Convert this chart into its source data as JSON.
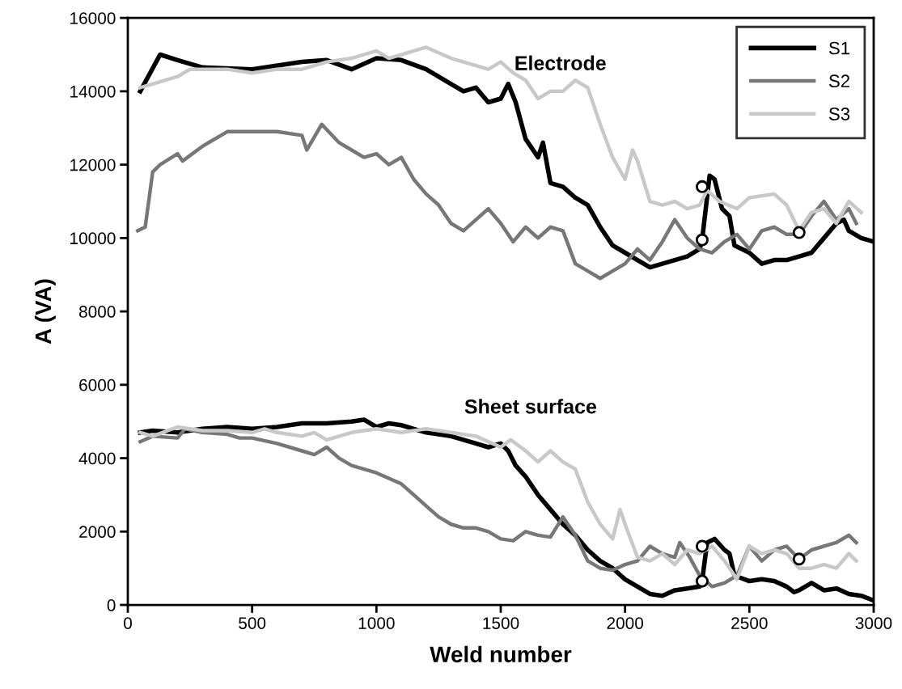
{
  "chart_data": {
    "type": "line",
    "xlabel": "Weld number",
    "ylabel": "A (VA)",
    "xlim": [
      0,
      3000
    ],
    "ylim": [
      0,
      16000
    ],
    "xticks": [
      0,
      500,
      1000,
      1500,
      2000,
      2500,
      3000
    ],
    "yticks": [
      0,
      2000,
      4000,
      6000,
      8000,
      10000,
      12000,
      14000,
      16000
    ],
    "grid": false,
    "legend": "top right",
    "marker": "none",
    "line_style": "solid",
    "annotations": [
      "Electrode",
      "Sheet surface"
    ],
    "series": [
      {
        "name": "S1",
        "color": "#000000",
        "x": [
          50,
          130,
          200,
          300,
          500,
          700,
          800,
          900,
          1000,
          1100,
          1200,
          1300,
          1350,
          1400,
          1450,
          1500,
          1530,
          1560,
          1600,
          1650,
          1670,
          1700,
          1750,
          1800,
          1850,
          1900,
          1950,
          2000,
          2050,
          2100,
          2200,
          2250,
          2300,
          2310,
          2340,
          2360,
          2390,
          2420,
          2440,
          2500,
          2550,
          2600,
          2650,
          2700,
          2750,
          2800,
          2850,
          2880,
          2900,
          2950,
          3000
        ],
        "values": [
          14000,
          15000,
          14850,
          14650,
          14600,
          14800,
          14850,
          14600,
          14900,
          14850,
          14600,
          14200,
          14000,
          14100,
          13700,
          13800,
          14200,
          13700,
          12700,
          12200,
          12600,
          11500,
          11400,
          11100,
          10900,
          10300,
          9800,
          9600,
          9400,
          9200,
          9400,
          9500,
          9700,
          9950,
          11700,
          11600,
          10800,
          10600,
          9800,
          9600,
          9300,
          9400,
          9400,
          9500,
          9600,
          10000,
          10400,
          10500,
          10200,
          10000,
          9900
        ]
      },
      {
        "name": "S2",
        "color": "#777777",
        "x": [
          40,
          70,
          100,
          130,
          200,
          220,
          300,
          400,
          500,
          600,
          700,
          720,
          780,
          850,
          900,
          950,
          1000,
          1050,
          1100,
          1150,
          1200,
          1250,
          1300,
          1350,
          1450,
          1500,
          1550,
          1600,
          1650,
          1700,
          1750,
          1800,
          1850,
          1900,
          1950,
          2000,
          2050,
          2100,
          2150,
          2200,
          2250,
          2300,
          2350,
          2400,
          2450,
          2500,
          2550,
          2600,
          2650,
          2700,
          2750,
          2800,
          2850,
          2900,
          2930
        ],
        "values": [
          10200,
          10300,
          11800,
          12000,
          12300,
          12100,
          12500,
          12900,
          12900,
          12900,
          12800,
          12400,
          13100,
          12600,
          12400,
          12200,
          12300,
          12000,
          12200,
          11600,
          11200,
          10900,
          10400,
          10200,
          10800,
          10400,
          9900,
          10300,
          10000,
          10300,
          10200,
          9300,
          9100,
          8900,
          9100,
          9300,
          9700,
          9400,
          9900,
          10500,
          10000,
          9700,
          9600,
          9900,
          10100,
          9700,
          10200,
          10300,
          10100,
          10100,
          10600,
          11000,
          10500,
          10800,
          10400
        ]
      },
      {
        "name": "S3",
        "color": "#c8c8c8",
        "x": [
          50,
          100,
          200,
          250,
          300,
          400,
          500,
          600,
          700,
          800,
          900,
          1000,
          1050,
          1100,
          1200,
          1300,
          1400,
          1450,
          1500,
          1550,
          1600,
          1650,
          1700,
          1750,
          1800,
          1850,
          1900,
          1950,
          2000,
          2030,
          2050,
          2100,
          2150,
          2200,
          2250,
          2300,
          2330,
          2380,
          2450,
          2500,
          2600,
          2650,
          2700,
          2750,
          2800,
          2850,
          2900,
          2950
        ],
        "values": [
          14100,
          14200,
          14400,
          14600,
          14600,
          14600,
          14500,
          14600,
          14600,
          14800,
          14900,
          15100,
          14900,
          15000,
          15200,
          14900,
          14700,
          14600,
          14800,
          14500,
          14300,
          13800,
          14000,
          14000,
          14300,
          14100,
          13100,
          12200,
          11600,
          12400,
          12100,
          11000,
          10900,
          11000,
          10800,
          10900,
          11300,
          11000,
          10800,
          11100,
          11200,
          10900,
          10200,
          10700,
          10800,
          10400,
          11000,
          10700
        ]
      },
      {
        "color": "#000000",
        "x": [
          50,
          100,
          200,
          300,
          400,
          500,
          600,
          700,
          800,
          900,
          950,
          1000,
          1050,
          1100,
          1200,
          1300,
          1400,
          1450,
          1500,
          1530,
          1560,
          1600,
          1650,
          1700,
          1750,
          1800,
          1850,
          1900,
          1950,
          2000,
          2050,
          2100,
          2150,
          2200,
          2250,
          2300,
          2310,
          2330,
          2360,
          2400,
          2420,
          2440,
          2500,
          2550,
          2600,
          2650,
          2680,
          2700,
          2750,
          2800,
          2850,
          2900,
          2950,
          3000
        ],
        "values": [
          4700,
          4750,
          4700,
          4800,
          4850,
          4800,
          4850,
          4950,
          4950,
          5000,
          5050,
          4850,
          4950,
          4900,
          4700,
          4600,
          4400,
          4300,
          4400,
          4200,
          3800,
          3500,
          3000,
          2600,
          2200,
          1900,
          1500,
          1200,
          1000,
          700,
          500,
          300,
          250,
          400,
          450,
          500,
          650,
          1700,
          1800,
          1500,
          1400,
          800,
          650,
          700,
          650,
          500,
          350,
          400,
          600,
          400,
          450,
          300,
          250,
          120
        ]
      },
      {
        "color": "#777777",
        "x": [
          50,
          100,
          200,
          230,
          300,
          400,
          450,
          500,
          600,
          700,
          750,
          800,
          850,
          900,
          1000,
          1100,
          1150,
          1200,
          1250,
          1300,
          1350,
          1400,
          1450,
          1500,
          1550,
          1600,
          1650,
          1700,
          1750,
          1800,
          1850,
          1900,
          1950,
          2000,
          2050,
          2100,
          2150,
          2200,
          2220,
          2260,
          2300,
          2350,
          2400,
          2450,
          2500,
          2550,
          2600,
          2650,
          2700,
          2750,
          2800,
          2850,
          2900,
          2930
        ],
        "values": [
          4450,
          4600,
          4550,
          4800,
          4700,
          4650,
          4550,
          4550,
          4400,
          4200,
          4100,
          4300,
          4000,
          3800,
          3600,
          3300,
          3000,
          2700,
          2400,
          2200,
          2100,
          2100,
          2000,
          1800,
          1750,
          2000,
          1900,
          1850,
          2400,
          1900,
          1200,
          1000,
          950,
          1100,
          1200,
          1600,
          1400,
          1300,
          1700,
          1300,
          800,
          500,
          600,
          800,
          1600,
          1200,
          1500,
          1600,
          1250,
          1500,
          1600,
          1700,
          1900,
          1700
        ]
      },
      {
        "color": "#c8c8c8",
        "x": [
          50,
          100,
          200,
          300,
          400,
          500,
          550,
          600,
          700,
          750,
          800,
          900,
          1000,
          1100,
          1200,
          1300,
          1400,
          1500,
          1540,
          1600,
          1650,
          1700,
          1750,
          1800,
          1850,
          1900,
          1950,
          1980,
          2000,
          2050,
          2100,
          2150,
          2200,
          2250,
          2300,
          2350,
          2400,
          2450,
          2500,
          2550,
          2600,
          2650,
          2700,
          2750,
          2800,
          2850,
          2900,
          2930
        ],
        "values": [
          4700,
          4600,
          4850,
          4750,
          4750,
          4700,
          4800,
          4700,
          4600,
          4700,
          4500,
          4700,
          4800,
          4700,
          4800,
          4700,
          4600,
          4300,
          4500,
          4200,
          3900,
          4200,
          3900,
          3700,
          2800,
          2200,
          1800,
          2600,
          2200,
          1300,
          1200,
          1400,
          1100,
          1500,
          1400,
          1600,
          1200,
          700,
          1600,
          1400,
          1500,
          1400,
          1000,
          1000,
          1100,
          1000,
          1400,
          1200
        ]
      },
      {
        "type": "scatter",
        "marker": "circle",
        "color": "#ffffff",
        "x": [
          2310,
          2310,
          2700,
          2310,
          2310,
          2700
        ],
        "values": [
          11400,
          9950,
          10150,
          1600,
          650,
          1250
        ]
      }
    ]
  }
}
